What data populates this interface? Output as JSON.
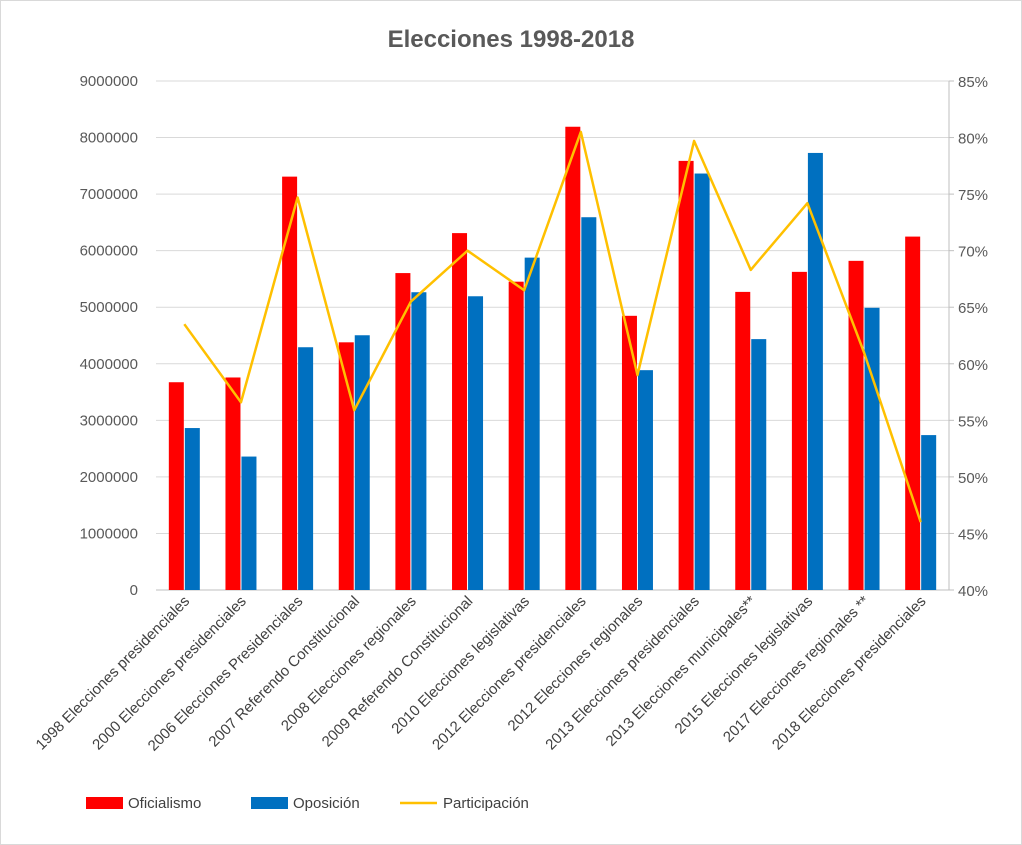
{
  "chart_data": {
    "type": "bar",
    "title": "Elecciones 1998-2018",
    "categories": [
      "1998 Elecciones presidenciales",
      "2000 Elecciones presidenciales",
      "2006 Elecciones Presidenciales",
      "2007 Referendo Constitucional",
      "2008 Elecciones regionales",
      "2009 Referendo Constitucional",
      "2010 Elecciones legislativas",
      "2012 Elecciones presidenciales",
      "2012 Elecciones regionales",
      "2013 Elecciones presidenciales",
      "2013 Elecciones municipales**",
      "2015 Elecciones legislativas",
      "2017 Elecciones regionales **",
      "2018 Elecciones presidenciales"
    ],
    "series": [
      {
        "name": "Oficialismo",
        "type": "bar",
        "axis": "left",
        "color": "#FF0000",
        "values": [
          3673685,
          3757773,
          7309080,
          4379392,
          5603734,
          6310482,
          5451419,
          8191132,
          4848000,
          7587579,
          5271000,
          5625248,
          5820000,
          6248864
        ]
      },
      {
        "name": "Oposición",
        "type": "bar",
        "axis": "left",
        "color": "#0070C0",
        "values": [
          2863619,
          2359459,
          4292466,
          4504354,
          5265000,
          5193839,
          5877000,
          6591304,
          3887000,
          7363980,
          4436000,
          7728025,
          4990000,
          2739000
        ]
      },
      {
        "name": "Participación",
        "type": "line",
        "axis": "right",
        "color": "#FFC000",
        "values": [
          63.5,
          56.6,
          74.7,
          55.9,
          65.5,
          70.0,
          66.5,
          80.5,
          59.0,
          79.7,
          68.3,
          74.2,
          61.0,
          46.0
        ]
      }
    ],
    "y_left": {
      "min": 0,
      "max": 9000000,
      "step": 1000000,
      "ticks": [
        "0",
        "1000000",
        "2000000",
        "3000000",
        "4000000",
        "5000000",
        "6000000",
        "7000000",
        "8000000",
        "9000000"
      ]
    },
    "y_right": {
      "min": 40,
      "max": 85,
      "step": 5,
      "ticks": [
        "40%",
        "45%",
        "50%",
        "55%",
        "60%",
        "65%",
        "70%",
        "75%",
        "80%",
        "85%"
      ]
    },
    "grid": true,
    "legend_position": "bottom-left"
  }
}
